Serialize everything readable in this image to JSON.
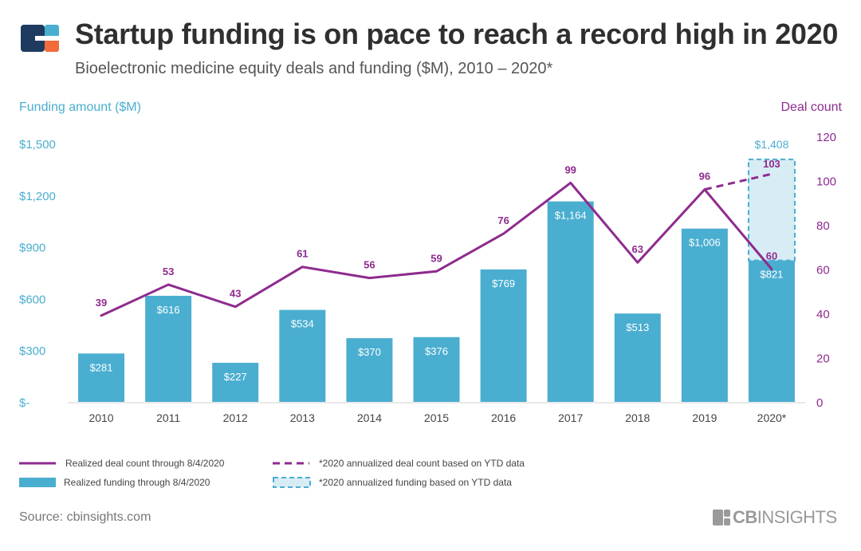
{
  "header": {
    "title": "Startup funding is on pace to reach a record high in 2020",
    "subtitle": "Bioelectronic medicine equity deals and funding ($M), 2010 – 2020*"
  },
  "axes": {
    "left_label": "Funding amount ($M)",
    "right_label": "Deal count"
  },
  "footer": {
    "source": "Source: cbinsights.com",
    "brand_bold": "CB",
    "brand_rest": "INSIGHTS"
  },
  "colors": {
    "bar": "#4aaed0",
    "bar_projected": "#d7ecf5",
    "line": "#8e2b8e",
    "left_axis_text": "#4aaed0",
    "right_axis_text": "#8e2b8e",
    "logo_navy": "#1e3a5f",
    "logo_orange": "#f26b3a",
    "logo_blue": "#4aaed0"
  },
  "chart_data": {
    "type": "bar",
    "categories": [
      "2010",
      "2011",
      "2012",
      "2013",
      "2014",
      "2015",
      "2016",
      "2017",
      "2018",
      "2019",
      "2020*"
    ],
    "series": [
      {
        "name": "Realized funding through 8/4/2020",
        "axis": "left",
        "type": "bar",
        "values": [
          281,
          616,
          227,
          534,
          370,
          376,
          769,
          1164,
          513,
          1006,
          821
        ],
        "labels": [
          "$281",
          "$616",
          "$227",
          "$534",
          "$370",
          "$376",
          "$769",
          "$1,164",
          "$513",
          "$1,006",
          "$821"
        ]
      },
      {
        "name": "*2020 annualized funding based on YTD data",
        "axis": "left",
        "type": "bar-projection",
        "category": "2020*",
        "value": 1408,
        "label": "$1,408"
      },
      {
        "name": "Realized deal count through 8/4/2020",
        "axis": "right",
        "type": "line",
        "values": [
          39,
          53,
          43,
          61,
          56,
          59,
          76,
          99,
          63,
          96,
          60
        ]
      },
      {
        "name": "*2020 annualized deal count based on YTD data",
        "axis": "right",
        "type": "line-dashed",
        "from": {
          "category": "2019",
          "value": 96
        },
        "to": {
          "category": "2020*",
          "value": 103
        }
      }
    ],
    "y_left": {
      "min": 0,
      "max": 1500,
      "ticks": [
        0,
        300,
        600,
        900,
        1200,
        1500
      ],
      "tick_labels": [
        "$-",
        "$300",
        "$600",
        "$900",
        "$1,200",
        "$1,500"
      ]
    },
    "y_right": {
      "min": 0,
      "max": 120,
      "ticks": [
        0,
        20,
        40,
        60,
        80,
        100,
        120
      ],
      "tick_labels": [
        "0",
        "20",
        "40",
        "60",
        "80",
        "100",
        "120"
      ]
    },
    "grid": false,
    "legend": [
      {
        "label": "Realized deal count through 8/4/2020",
        "swatch": "line"
      },
      {
        "label": "*2020 annualized deal count based on YTD data",
        "swatch": "dashed-line"
      },
      {
        "label": "Realized funding through 8/4/2020",
        "swatch": "bar"
      },
      {
        "label": "*2020 annualized funding based on YTD data",
        "swatch": "dashed-box"
      }
    ],
    "legend_position": "bottom"
  }
}
